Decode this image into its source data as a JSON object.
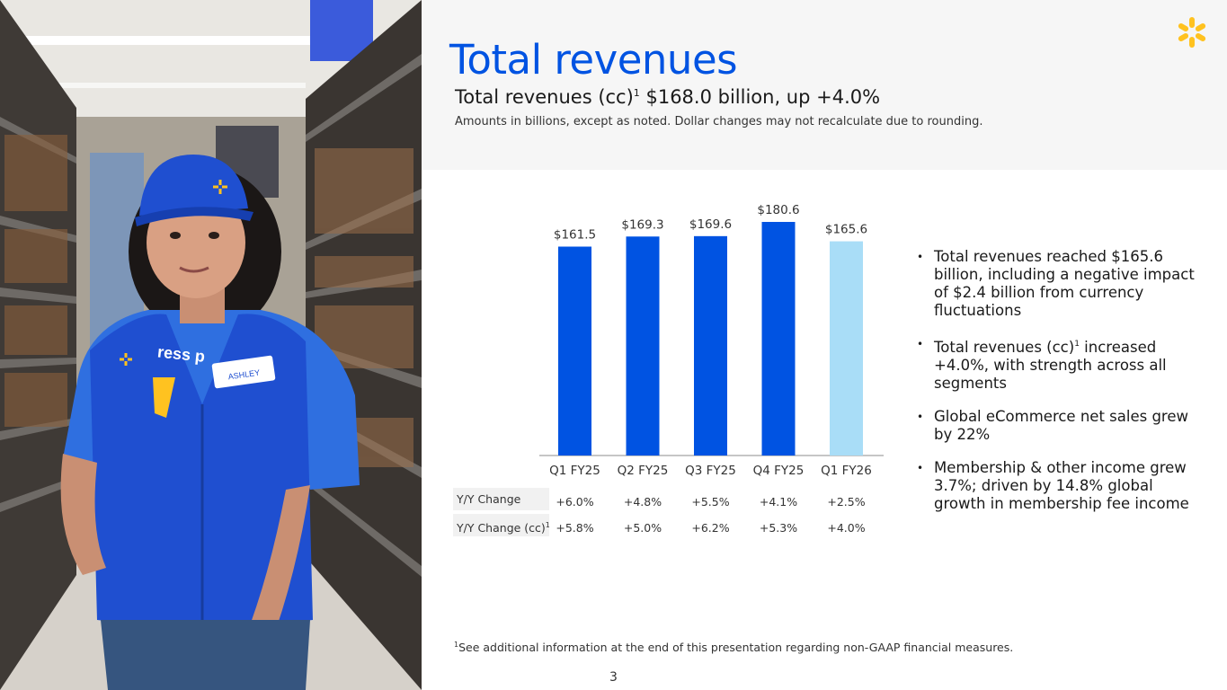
{
  "header": {
    "title": "Total revenues",
    "subtitle_prefix": "Total revenues (cc)",
    "subtitle_sup": "1",
    "subtitle_suffix": " $168.0 billion, up +4.0%",
    "note": "Amounts in billions, except as noted.  Dollar changes may not recalculate due to rounding."
  },
  "photo": {
    "name_tag": "ASHLEY",
    "shirt_text": "ress p"
  },
  "chart_data": {
    "type": "bar",
    "categories": [
      "Q1 FY25",
      "Q2 FY25",
      "Q3 FY25",
      "Q4 FY25",
      "Q1 FY26"
    ],
    "values": [
      161.5,
      169.3,
      169.6,
      180.6,
      165.6
    ],
    "value_labels": [
      "$161.5",
      "$169.3",
      "$169.6",
      "$180.6",
      "$165.6"
    ],
    "colors": [
      "#0053e2",
      "#0053e2",
      "#0053e2",
      "#0053e2",
      "#a9ddf7"
    ],
    "ylim": [
      0,
      180.6
    ],
    "title": "",
    "xlabel": "",
    "ylabel": "",
    "grid": false,
    "legend": "none"
  },
  "table": {
    "rows": [
      {
        "label": "Y/Y Change",
        "sup": "",
        "values": [
          "+6.0%",
          "+4.8%",
          "+5.5%",
          "+4.1%",
          "+2.5%"
        ]
      },
      {
        "label": "Y/Y Change (cc)",
        "sup": "1",
        "values": [
          "+5.8%",
          "+5.0%",
          "+6.2%",
          "+5.3%",
          "+4.0%"
        ]
      }
    ]
  },
  "bullets": [
    {
      "text": "Total revenues reached $165.6 billion, including a negative impact of $2.4 billion from currency fluctuations"
    },
    {
      "pre": "Total revenues (cc)",
      "sup": "1",
      "post": " increased +4.0%, with strength across all segments"
    },
    {
      "text": "Global eCommerce net sales grew by 22%"
    },
    {
      "text": "Membership & other income grew 3.7%; driven by 14.8% global growth in membership fee income"
    }
  ],
  "footer": {
    "footnote_sup": "1",
    "footnote": "See additional information at the end of this presentation regarding non-GAAP financial measures.",
    "page_number": "3"
  },
  "colors": {
    "brand_blue": "#0053e2",
    "light_blue": "#a9ddf7",
    "spark_yellow": "#ffc220",
    "header_band": "#f6f6f6"
  },
  "icons": {
    "logo": "spark-logo-icon"
  }
}
